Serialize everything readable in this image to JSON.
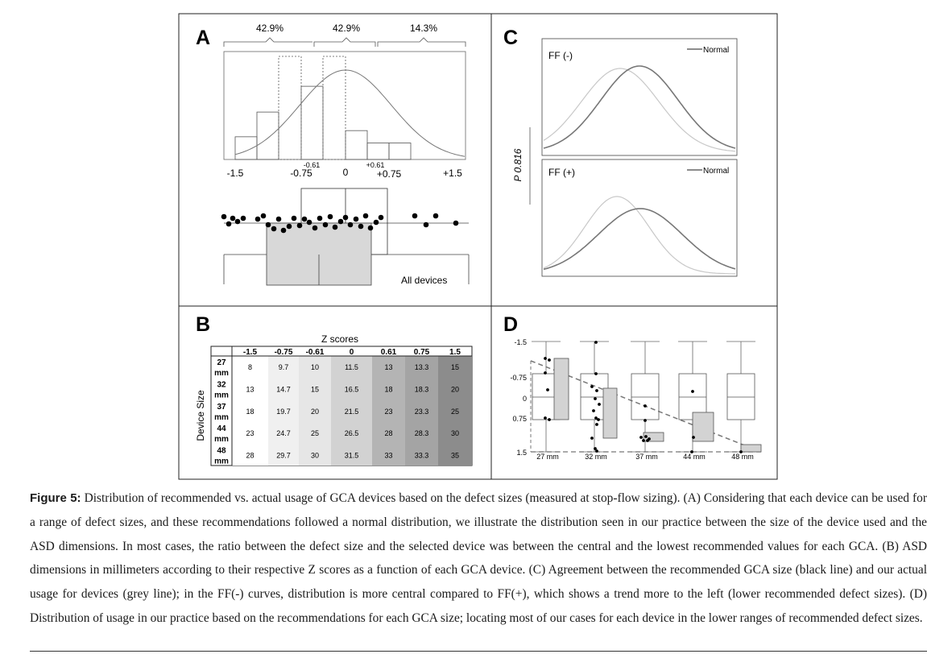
{
  "panelA": {
    "label": "A",
    "pct": [
      "42.9%",
      "42.9%",
      "14.3%"
    ],
    "hist": [
      0.22,
      0.46,
      1.0,
      0.71,
      1.0,
      0.28,
      0.16,
      0.16
    ],
    "ticks_main": [
      "-1.5",
      "-0.75",
      "0",
      "+0.75",
      "+1.5"
    ],
    "ticks_small": [
      "-0.61",
      "+0.61"
    ],
    "dots_label": "All devices"
  },
  "panelB": {
    "label": "B",
    "title": "Z scores",
    "row_axis_label": "Device Size",
    "columns": [
      "-1.5",
      "-0.75",
      "-0.61",
      "0",
      "0.61",
      "0.75",
      "1.5"
    ],
    "rows": [
      {
        "size": "27",
        "unit": "mm",
        "values": [
          "8",
          "9.7",
          "10",
          "11.5",
          "13",
          "13.3",
          "15"
        ]
      },
      {
        "size": "32",
        "unit": "mm",
        "values": [
          "13",
          "14.7",
          "15",
          "16.5",
          "18",
          "18.3",
          "20"
        ]
      },
      {
        "size": "37",
        "unit": "mm",
        "values": [
          "18",
          "19.7",
          "20",
          "21.5",
          "23",
          "23.3",
          "25"
        ]
      },
      {
        "size": "44",
        "unit": "mm",
        "values": [
          "23",
          "24.7",
          "25",
          "26.5",
          "28",
          "28.3",
          "30"
        ]
      },
      {
        "size": "48",
        "unit": "mm",
        "values": [
          "28",
          "29.7",
          "30",
          "31.5",
          "33",
          "33.3",
          "35"
        ]
      }
    ],
    "column_shades": [
      "#ffffff",
      "#f0f0f0",
      "#e6e6e6",
      "#d2d2d2",
      "#b4b4b4",
      "#a4a4a4",
      "#8c8c8c"
    ]
  },
  "panelC": {
    "label": "C",
    "y_label": "P 0.816",
    "legend": "Normal",
    "top_title": "FF (-)",
    "bottom_title": "FF (+)"
  },
  "panelD": {
    "label": "D",
    "y_ticks": [
      "-1.5",
      "-0.75",
      "0",
      "0.75",
      "1.5"
    ],
    "x_labels": [
      "27 mm",
      "32 mm",
      "37 mm",
      "44 mm",
      "48 mm"
    ]
  },
  "caption": {
    "label": "Figure 5:",
    "text": " Distribution of recommended vs. actual usage of GCA devices based on the defect sizes (measured at stop-flow sizing). (A) Considering that each device can be used for a range of defect sizes, and these recommendations followed a normal distribution, we illustrate the distribution seen in our practice between the size of the device used and the ASD dimensions. In most cases, the ratio between the defect size and the selected device was between the central and the lowest recommended values for each GCA. (B) ASD dimensions in millimeters according to their respective Z scores as a function of each GCA device. (C) Agreement between the recommended GCA size (black line) and our actual usage for devices (grey line); in the FF(-) curves, distribution is more central compared to FF(+), which shows a trend more to the left (lower recommended defect sizes). (D) Distribution of usage in our practice based on the recommendations for each GCA size; locating most of our cases for each device in the lower ranges of recommended defect sizes."
  }
}
